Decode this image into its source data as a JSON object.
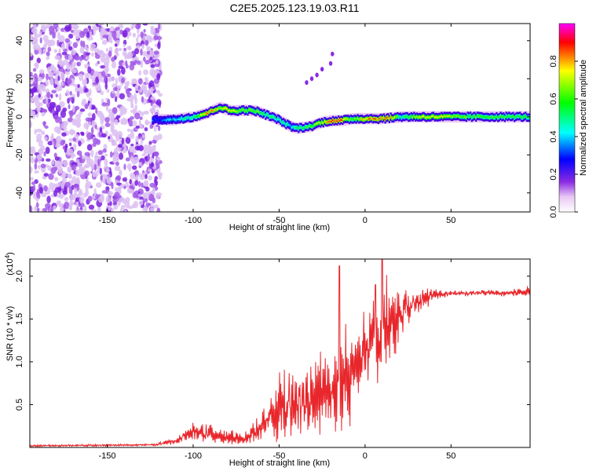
{
  "title": "C2E5.2025.123.19.03.R11",
  "colors": {
    "line": "#e8262b",
    "frame": "#000000",
    "background": "#ffffff"
  },
  "chart_data": [
    {
      "type": "heatmap",
      "xlabel": "Height of straight line (km)",
      "ylabel": "Frequency (Hz)",
      "xlim": [
        -195,
        96
      ],
      "ylim": [
        -50,
        49
      ],
      "xticks": [
        -150,
        -100,
        -50,
        0,
        50
      ],
      "yticks": [
        -40,
        -20,
        0,
        20,
        40
      ],
      "colorbar": {
        "label": "Normalized spectral amplitude",
        "range": [
          0.0,
          1.0
        ],
        "ticks": [
          "0.0",
          "0.2",
          "0.4",
          "0.6",
          "0.8"
        ],
        "tick_values": [
          0.0,
          0.2,
          0.4,
          0.6,
          0.8
        ],
        "colors": [
          "#ffffff",
          "#8a2be2",
          "#0000ff",
          "#00ffff",
          "#00ff00",
          "#ffff00",
          "#ff0000",
          "#ff00ff"
        ]
      },
      "noise_region_x": [
        -195,
        -119
      ],
      "ridge": {
        "x": [
          -124,
          -112,
          -100,
          -92,
          -85,
          -78,
          -70,
          -64,
          -58,
          -52,
          -48,
          -44,
          -40,
          -36,
          -32,
          -26,
          -20,
          -14,
          -8,
          0,
          8,
          15,
          20,
          30,
          40,
          60,
          80,
          96
        ],
        "y": [
          -1.5,
          -1.5,
          0.0,
          2.0,
          5.0,
          3.0,
          3.5,
          3.0,
          1.0,
          -1.0,
          -3.0,
          -5.0,
          -6.0,
          -5.5,
          -5.0,
          -3.0,
          -2.0,
          -2.0,
          -1.0,
          -1.0,
          -1.0,
          -0.5,
          0.0,
          0.0,
          0.0,
          0.0,
          0.0,
          0.0
        ],
        "amp": [
          0.3,
          0.4,
          0.55,
          0.85,
          0.7,
          0.75,
          0.6,
          0.65,
          0.55,
          0.5,
          0.5,
          0.45,
          0.5,
          0.55,
          0.6,
          0.7,
          0.9,
          0.85,
          0.6,
          0.8,
          0.85,
          0.8,
          0.5,
          0.7,
          0.75,
          0.6,
          0.6,
          0.55
        ]
      },
      "feature_points": [
        {
          "x": -34,
          "y": 18
        },
        {
          "x": -31,
          "y": 20
        },
        {
          "x": -28,
          "y": 22
        },
        {
          "x": -25,
          "y": 25
        },
        {
          "x": -20,
          "y": 28
        },
        {
          "x": -19,
          "y": 33
        }
      ]
    },
    {
      "type": "line",
      "xlabel": "Height of straight line (km)",
      "ylabel": "SNR (10 * v/v)",
      "multiplier": "(x10",
      "multiplier_exp": "4",
      "multiplier_close": ")",
      "xlim": [
        -195,
        96
      ],
      "ylim": [
        0.0,
        2.2
      ],
      "xticks": [
        -150,
        -100,
        -50,
        0,
        50
      ],
      "yticks": [
        "0.5",
        "1.0",
        "1.5",
        "2.0"
      ],
      "ytick_values": [
        0.5,
        1.0,
        1.5,
        2.0
      ],
      "envelope": {
        "x": [
          -195,
          -122,
          -110,
          -100,
          -90,
          -80,
          -70,
          -60,
          -55,
          -50,
          -40,
          -30,
          -20,
          -15,
          -10,
          -5,
          0,
          5,
          10,
          20,
          30,
          40,
          50,
          60,
          70,
          80,
          90,
          96
        ],
        "mean": [
          0.02,
          0.03,
          0.08,
          0.18,
          0.15,
          0.12,
          0.1,
          0.25,
          0.35,
          0.45,
          0.5,
          0.55,
          0.6,
          0.7,
          0.85,
          1.0,
          1.15,
          1.3,
          1.35,
          1.55,
          1.7,
          1.78,
          1.8,
          1.8,
          1.81,
          1.8,
          1.81,
          1.82
        ],
        "amp": [
          0.01,
          0.01,
          0.04,
          0.1,
          0.1,
          0.08,
          0.06,
          0.15,
          0.2,
          0.35,
          0.4,
          0.45,
          0.45,
          0.6,
          0.55,
          0.45,
          0.45,
          0.4,
          0.55,
          0.3,
          0.15,
          0.06,
          0.03,
          0.03,
          0.03,
          0.03,
          0.04,
          0.08
        ]
      },
      "spikes": [
        {
          "x": -15,
          "y": 2.12
        },
        {
          "x": 10,
          "y": 2.25
        },
        {
          "x": 6,
          "y": 1.9
        }
      ]
    }
  ]
}
